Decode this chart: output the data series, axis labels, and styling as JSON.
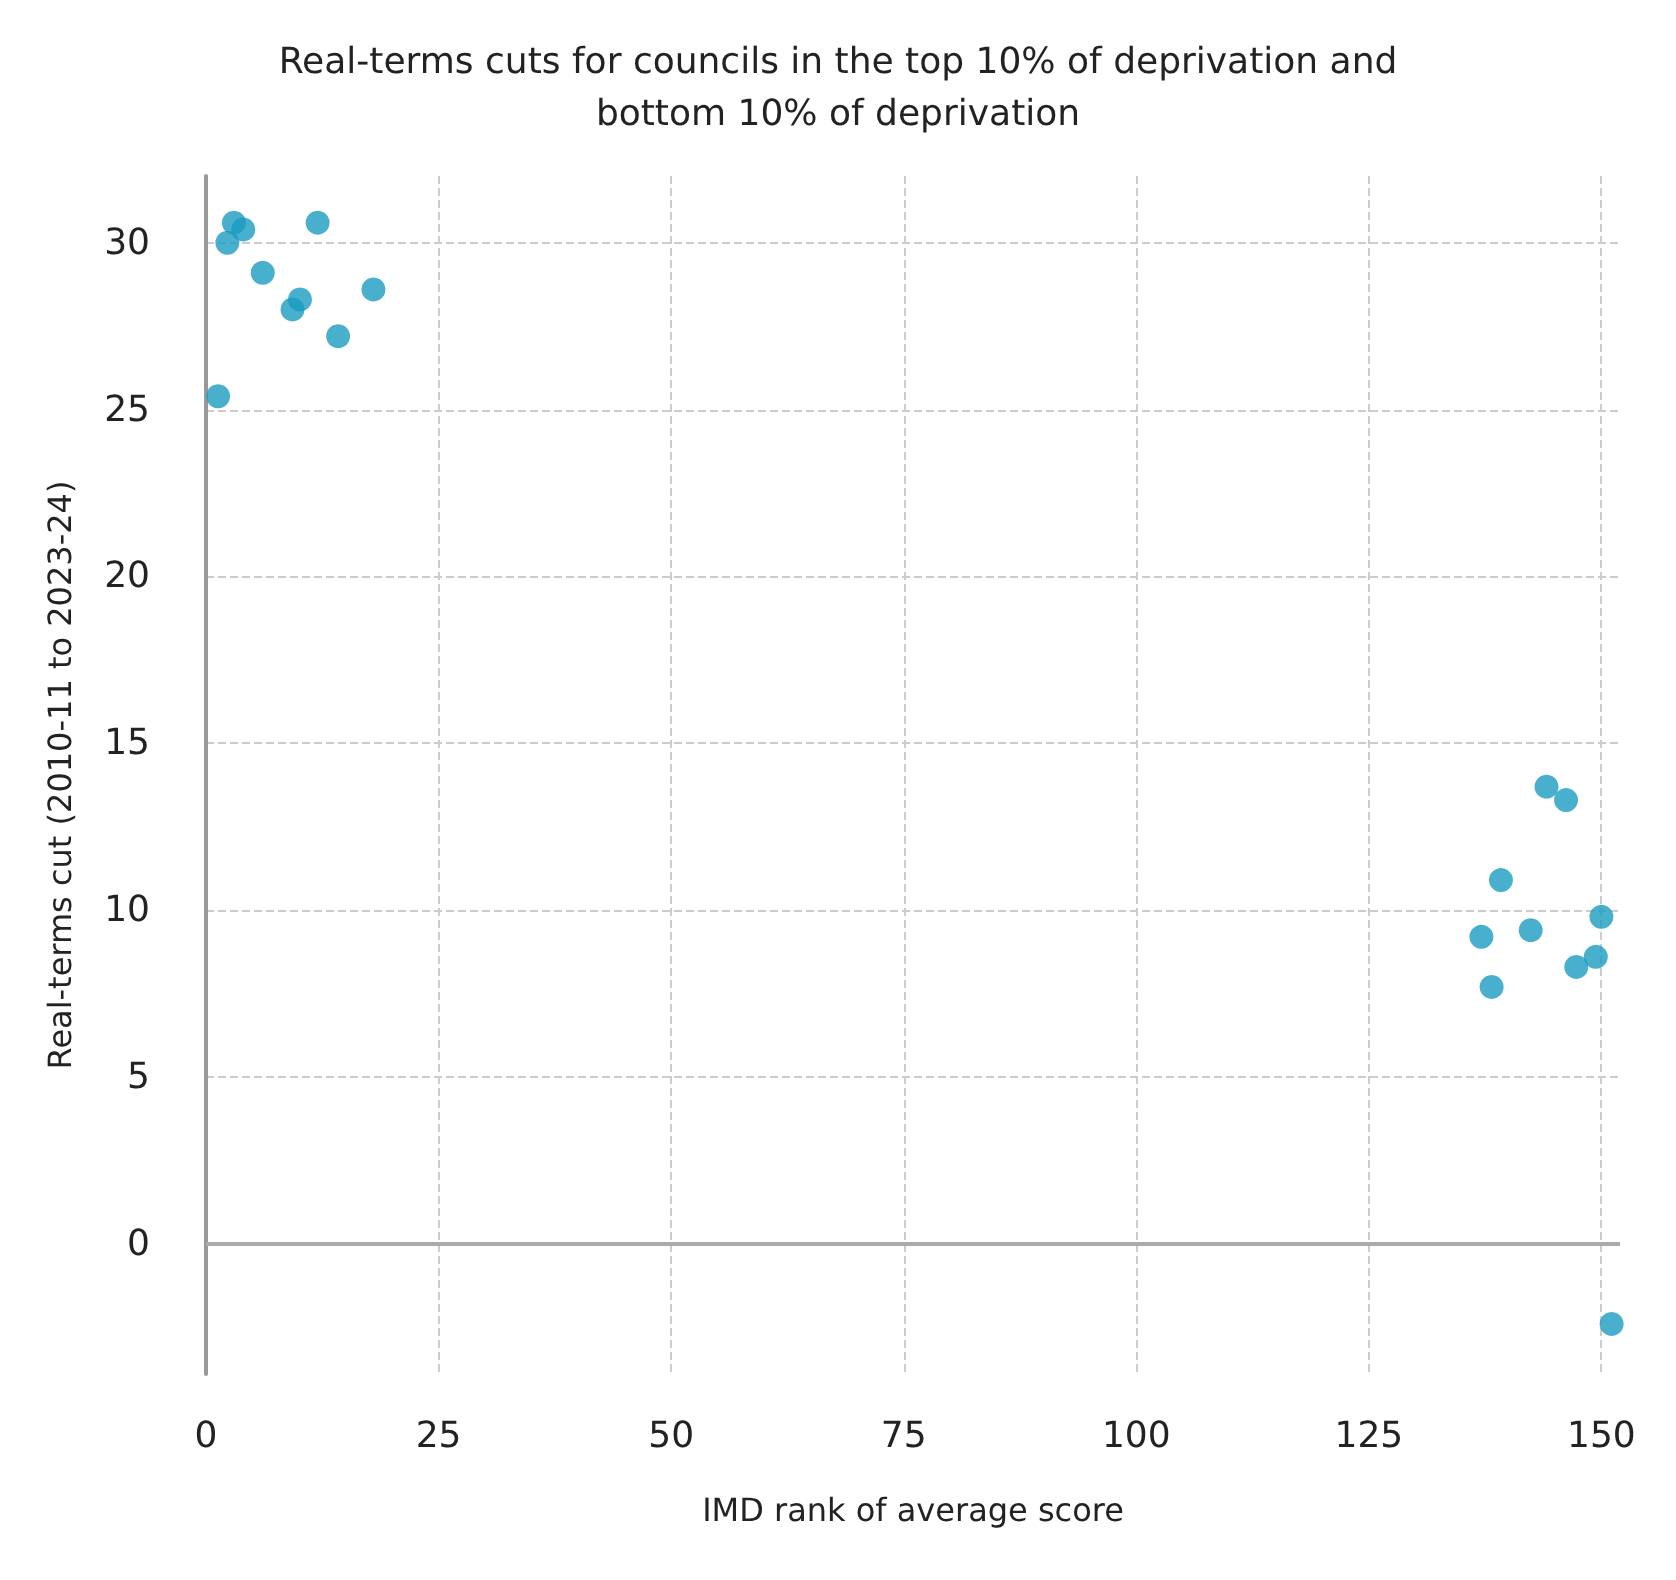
{
  "chart_data": {
    "type": "scatter",
    "title": "Real-terms cuts for councils in the top 10% of deprivation and\nbottom 10% of deprivation",
    "xlabel": "IMD rank of average score",
    "ylabel": "Real-terms cut (2010-11 to 2023-24)",
    "x": [
      1.3,
      2.3,
      3,
      4,
      6.1,
      9.3,
      10.1,
      12,
      14.2,
      18,
      137.1,
      138.2,
      139.2,
      142.4,
      144.1,
      146.2,
      147.3,
      149.4,
      150,
      151.1
    ],
    "series": [
      {
        "color": "#1a9bc0",
        "values": [
          25.4,
          30.0,
          30.6,
          30.4,
          29.1,
          28.0,
          28.3,
          30.6,
          27.2,
          28.6,
          9.2,
          7.7,
          10.9,
          9.4,
          13.7,
          13.3,
          8.3,
          8.6,
          9.8,
          -2.4
        ]
      }
    ],
    "xlim": [
      0,
      152
    ],
    "xticks": [
      0,
      25,
      50,
      75,
      100,
      125,
      150
    ],
    "ylim": [
      -3.9,
      32
    ],
    "yticks": [
      0,
      5,
      10,
      15,
      20,
      25,
      30
    ],
    "ref_lines": [
      {
        "axis": "y",
        "value": 0,
        "color": "#aaaaaa",
        "line_style": "solid"
      }
    ],
    "grid": true,
    "marker": "circle"
  }
}
